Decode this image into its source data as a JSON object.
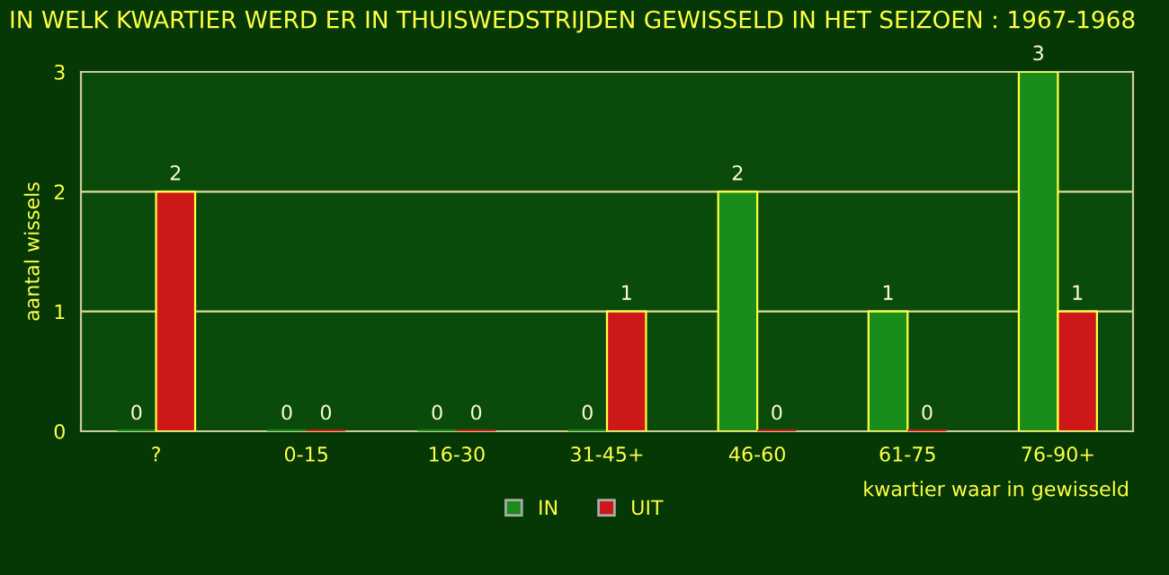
{
  "chart_data": {
    "type": "bar",
    "title": "IN WELK KWARTIER WERD ER IN THUISWEDSTRIJDEN GEWISSELD IN HET SEIZOEN : 1967-1968",
    "xlabel": "kwartier waar in gewisseld",
    "ylabel": "aantal wissels",
    "categories": [
      "?",
      "0-15",
      "16-30",
      "31-45+",
      "46-60",
      "61-75",
      "76-90+"
    ],
    "series": [
      {
        "name": "IN",
        "color": "#1a8c1a",
        "values": [
          0,
          0,
          0,
          0,
          2,
          1,
          3
        ]
      },
      {
        "name": "UIT",
        "color": "#cc1818",
        "values": [
          2,
          0,
          0,
          1,
          0,
          0,
          1
        ]
      }
    ],
    "ylim": [
      0,
      3
    ],
    "yticks": [
      0,
      1,
      2,
      3
    ],
    "grid": "y",
    "legend": "bottom",
    "data_labels": true
  }
}
